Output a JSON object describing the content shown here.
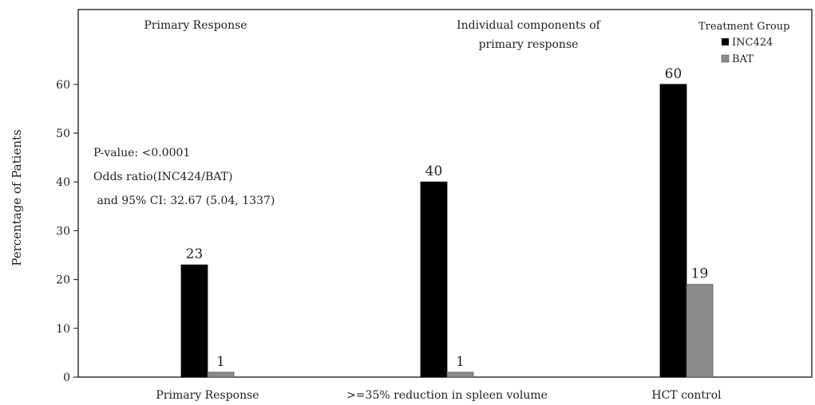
{
  "chart_data": {
    "type": "bar",
    "categories": [
      "Primary Response",
      ">=35% reduction in spleen volume",
      "HCT control"
    ],
    "series": [
      {
        "name": "INC424",
        "values": [
          23,
          40,
          60
        ],
        "labels": [
          "23",
          "40",
          "60"
        ],
        "color": "#000000"
      },
      {
        "name": "BAT",
        "values": [
          1,
          1,
          19
        ],
        "labels": [
          "1",
          "1",
          "19"
        ],
        "color": "#8c8c8c"
      }
    ],
    "ylabel": "Percentage of Patients",
    "xlabel": "",
    "ylim": [
      0,
      70
    ],
    "yticks": [
      0,
      10,
      20,
      30,
      40,
      50,
      60
    ],
    "ytick_labels": [
      "0",
      "10",
      "20",
      "30",
      "40",
      "50",
      "60"
    ],
    "panel_titles": [
      "Primary Response",
      "Individual components of",
      "primary response"
    ],
    "annotation": [
      "P-value: <0.0001",
      "Odds ratio(INC424/BAT)",
      " and 95% CI: 32.67 (5.04, 1337)"
    ],
    "legend": {
      "title": "Treatment Group",
      "position": "top-right"
    },
    "grid": false
  }
}
